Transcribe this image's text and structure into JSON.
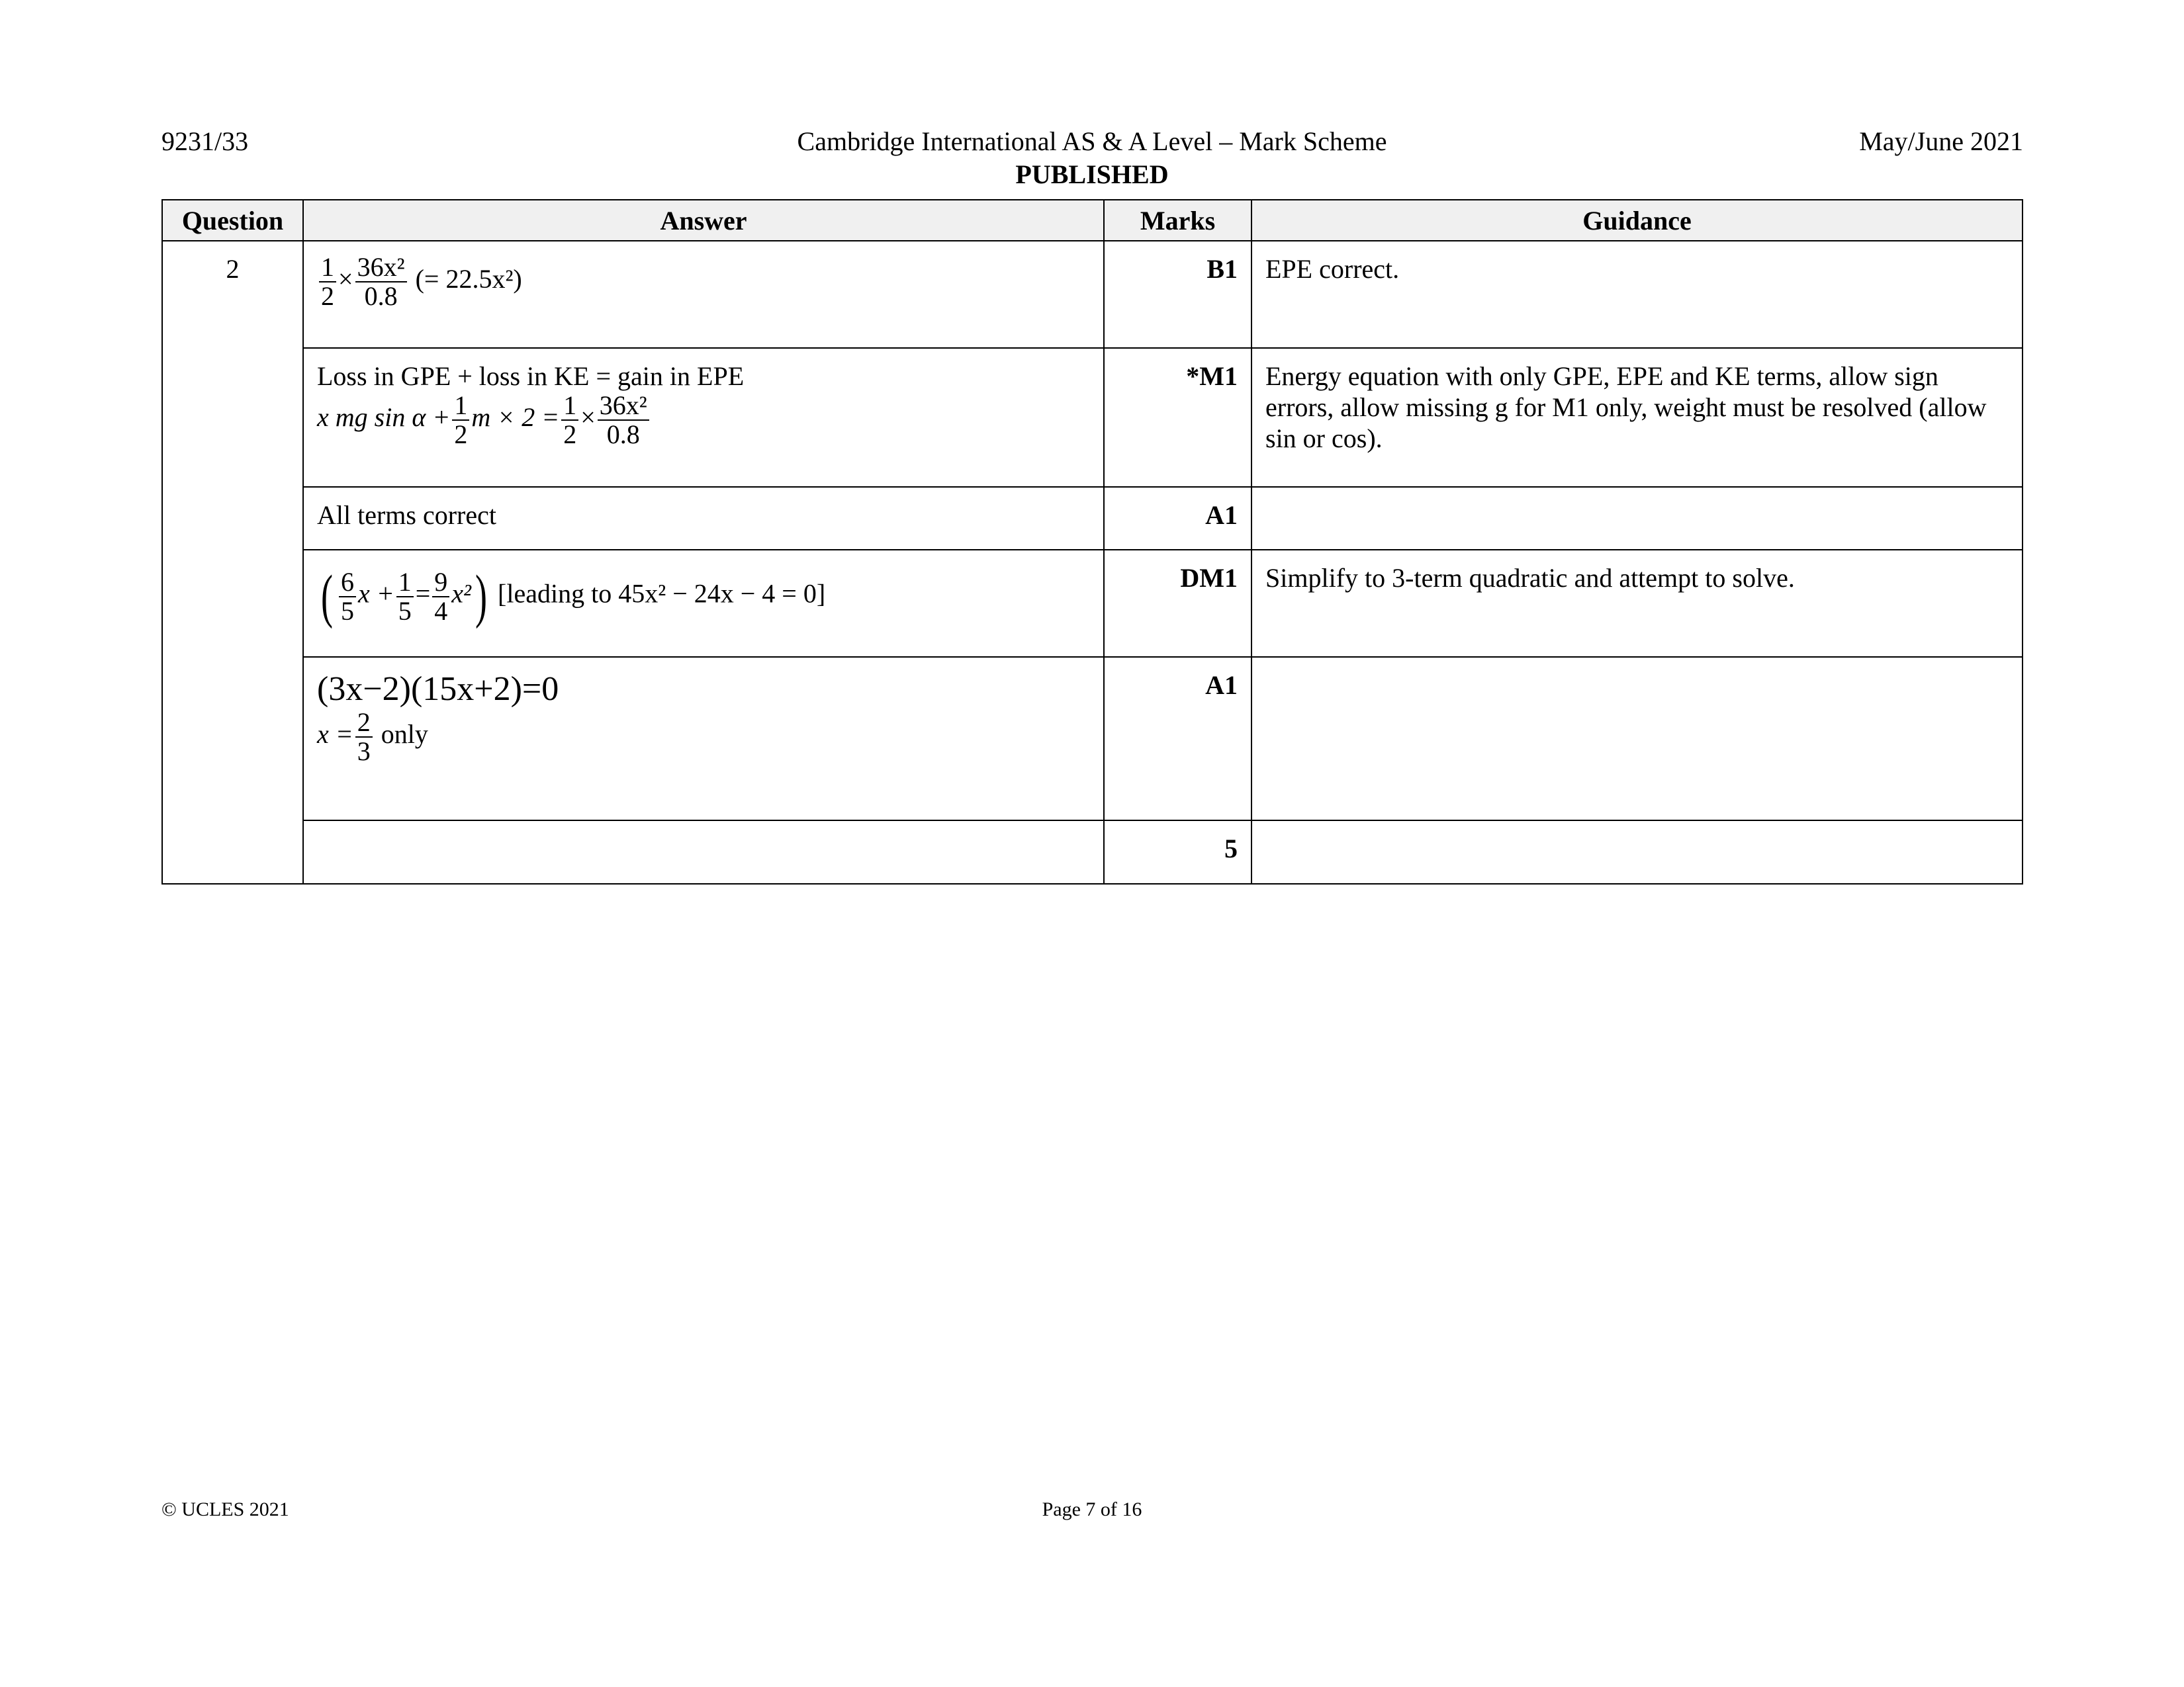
{
  "header": {
    "code": "9231/33",
    "title": "Cambridge International AS & A Level – Mark Scheme",
    "date": "May/June 2021",
    "status": "PUBLISHED"
  },
  "table": {
    "columns": [
      "Question",
      "Answer",
      "Marks",
      "Guidance"
    ],
    "question": "2",
    "rows": [
      {
        "answer": {
          "f1n": "1",
          "f1d": "2",
          "times": "×",
          "f2n": "36x²",
          "f2d": "0.8",
          "note": "(= 22.5x²)"
        },
        "mark": "B1",
        "guidance": "EPE correct."
      },
      {
        "answer": {
          "text": "Loss in GPE + loss in KE = gain in EPE",
          "lhs": "x mg sin α +",
          "h1n": "1",
          "h1d": "2",
          "mid": "m × 2 =",
          "h2n": "1",
          "h2d": "2",
          "times": "×",
          "fn": "36x²",
          "fd": "0.8"
        },
        "mark": "*M1",
        "guidance": "Energy equation with only GPE, EPE and KE terms, allow sign errors, allow missing g for M1 only, weight must be resolved (allow sin or cos)."
      },
      {
        "answer": {
          "text": "All terms correct"
        },
        "mark": "A1",
        "guidance": ""
      },
      {
        "answer": {
          "a_n": "6",
          "a_d": "5",
          "x": "x +",
          "b_n": "1",
          "b_d": "5",
          "eq": "=",
          "c_n": "9",
          "c_d": "4",
          "x2": "x²",
          "note": "[leading to 45x² − 24x − 4 = 0]"
        },
        "mark": "DM1",
        "guidance": "Simplify to 3-term quadratic and attempt to solve."
      },
      {
        "answer": {
          "factor": "(3x−2)(15x+2)=0",
          "xeq": "x =",
          "rn": "2",
          "rd": "3",
          "only": "only"
        },
        "mark": "A1",
        "guidance": ""
      },
      {
        "answer": {},
        "mark": "5",
        "guidance": ""
      }
    ]
  },
  "footer": {
    "copyright": "© UCLES 2021",
    "page": "Page 7 of 16"
  }
}
